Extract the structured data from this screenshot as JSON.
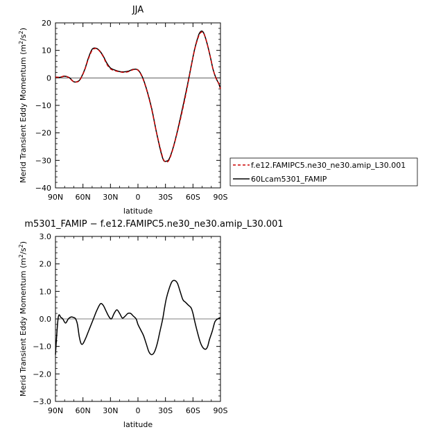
{
  "chart_data": [
    {
      "type": "line",
      "title": "JJA",
      "xlabel": "latitude",
      "ylabel": "Merid Transient Eddy Momentum (m²/s²)",
      "xlim": [
        90,
        -90
      ],
      "ylim": [
        -40,
        20
      ],
      "x_tick_values": [
        90,
        60,
        30,
        0,
        -30,
        -60,
        -90
      ],
      "x_tick_labels": [
        "90N",
        "60N",
        "30N",
        "0",
        "30S",
        "60S",
        "90S"
      ],
      "y_tick_values": [
        20,
        10,
        0,
        -10,
        -20,
        -30,
        -40
      ],
      "y_tick_labels": [
        "20",
        "10",
        "0",
        "−10",
        "−20",
        "−30",
        "−40"
      ],
      "grid": false,
      "legend_placement": "right",
      "series": [
        {
          "name": "f.e12.FAMIPC5.ne30_ne30.amip_L30.001",
          "color": "#cc0000",
          "dash": "dashed",
          "x": [
            90,
            85,
            80,
            75,
            70,
            65,
            62,
            58,
            54,
            50,
            46,
            42,
            38,
            34,
            30,
            25,
            20,
            15,
            10,
            5,
            0,
            -5,
            -10,
            -15,
            -20,
            -25,
            -28,
            -31,
            -34,
            -38,
            -42,
            -46,
            -50,
            -54,
            -58,
            -62,
            -66,
            -68,
            -70,
            -72,
            -75,
            -78,
            -80,
            -82,
            -85,
            -88,
            -90
          ],
          "y": [
            0.3,
            0.2,
            0.7,
            0.0,
            -1.4,
            -1.3,
            0.0,
            3.0,
            7.0,
            10.0,
            10.7,
            9.8,
            7.8,
            5.0,
            3.3,
            2.6,
            2.2,
            2.0,
            2.3,
            3.0,
            2.8,
            0.0,
            -5.0,
            -11.5,
            -19.5,
            -26.5,
            -29.8,
            -30.6,
            -29.8,
            -26.0,
            -21.0,
            -15.5,
            -9.5,
            -3.0,
            4.0,
            10.5,
            15.0,
            16.3,
            16.7,
            16.0,
            13.0,
            9.0,
            6.0,
            3.0,
            0.0,
            -2.0,
            -4.0
          ]
        },
        {
          "name": "60Lcam5301_FAMIP",
          "color": "#000000",
          "dash": "solid",
          "x": [
            90,
            85,
            80,
            75,
            70,
            65,
            62,
            58,
            54,
            50,
            46,
            42,
            38,
            34,
            30,
            25,
            20,
            15,
            10,
            5,
            0,
            -5,
            -10,
            -15,
            -20,
            -25,
            -28,
            -31,
            -34,
            -38,
            -42,
            -46,
            -50,
            -54,
            -58,
            -62,
            -66,
            -68,
            -70,
            -72,
            -75,
            -78,
            -80,
            -82,
            -85,
            -88,
            -90
          ],
          "y": [
            0.3,
            0.2,
            0.6,
            0.1,
            -1.4,
            -1.2,
            0.1,
            3.1,
            7.3,
            10.4,
            10.8,
            9.9,
            8.0,
            5.4,
            3.6,
            2.8,
            2.3,
            2.2,
            2.5,
            3.1,
            2.9,
            0.2,
            -4.8,
            -11.2,
            -19.5,
            -26.9,
            -30.0,
            -30.3,
            -29.5,
            -25.8,
            -20.8,
            -15.0,
            -8.9,
            -2.6,
            4.2,
            10.7,
            15.4,
            16.7,
            17.0,
            16.1,
            13.0,
            9.0,
            6.0,
            3.0,
            0.0,
            -2.0,
            -4.0
          ]
        }
      ]
    },
    {
      "type": "line",
      "title": "m5301_FAMIP − f.e12.FAMIPC5.ne30_ne30.amip_L30.001",
      "xlabel": "latitude",
      "ylabel": "Merid Transient Eddy Momentum (m²/s²)",
      "xlim": [
        90,
        -90
      ],
      "ylim": [
        -3,
        3
      ],
      "x_tick_values": [
        90,
        60,
        30,
        0,
        -30,
        -60,
        -90
      ],
      "x_tick_labels": [
        "90N",
        "60N",
        "30N",
        "0",
        "30S",
        "60S",
        "90S"
      ],
      "y_tick_values": [
        3,
        2,
        1,
        0,
        -1,
        -2,
        -3
      ],
      "y_tick_labels": [
        "3.0",
        "2.0",
        "1.0",
        "0.0",
        "−1.0",
        "−2.0",
        "−3.0"
      ],
      "grid": false,
      "series": [
        {
          "color": "#000000",
          "dash": "solid",
          "x": [
            90,
            87,
            84,
            82,
            79,
            76,
            73,
            70,
            68,
            66,
            64,
            62,
            60,
            57,
            54,
            51,
            48,
            45,
            41,
            38,
            35,
            32,
            29,
            26,
            23,
            20,
            17,
            14,
            11,
            8,
            5,
            2,
            0,
            -3,
            -6,
            -9,
            -12,
            -15,
            -18,
            -21,
            -24,
            -27,
            -29,
            -31,
            -34,
            -37,
            -40,
            -43,
            -46,
            -49,
            -52,
            -55,
            -58,
            -60,
            -62,
            -65,
            -68,
            -71,
            -74,
            -76,
            -78,
            -81,
            -84,
            -87,
            -90
          ],
          "y": [
            -1.3,
            0.05,
            0.05,
            0.0,
            -0.15,
            0.0,
            0.07,
            0.05,
            0.0,
            -0.2,
            -0.65,
            -0.9,
            -0.9,
            -0.7,
            -0.45,
            -0.2,
            0.05,
            0.3,
            0.55,
            0.5,
            0.3,
            0.1,
            0.0,
            0.2,
            0.33,
            0.2,
            0.03,
            0.1,
            0.2,
            0.2,
            0.1,
            0.0,
            -0.2,
            -0.4,
            -0.6,
            -0.9,
            -1.2,
            -1.3,
            -1.2,
            -0.9,
            -0.45,
            0.0,
            0.4,
            0.75,
            1.1,
            1.35,
            1.4,
            1.3,
            1.0,
            0.7,
            0.6,
            0.5,
            0.4,
            0.2,
            -0.1,
            -0.5,
            -0.85,
            -1.05,
            -1.1,
            -1.0,
            -0.75,
            -0.45,
            -0.1,
            0.0,
            0.05
          ]
        }
      ]
    }
  ]
}
